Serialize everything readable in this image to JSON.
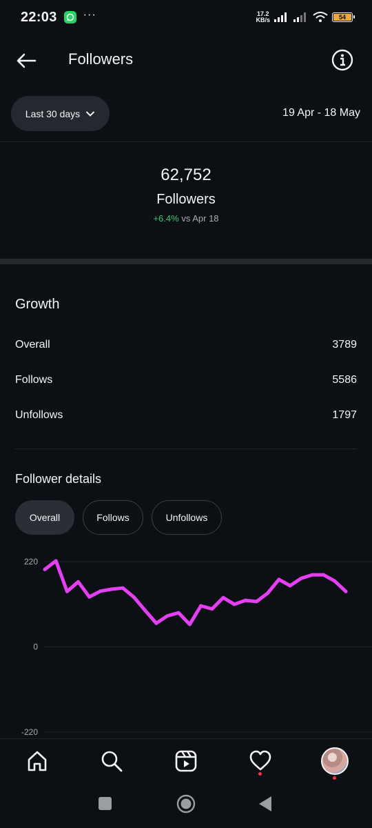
{
  "status_bar": {
    "time": "22:03",
    "overflow": "···",
    "net_speed_value": "17.2",
    "net_speed_unit": "KB/s",
    "battery": "54"
  },
  "header": {
    "title": "Followers"
  },
  "filter": {
    "range_label": "Last 30 days",
    "date_range": "19 Apr - 18 May"
  },
  "summary": {
    "total": "62,752",
    "label": "Followers",
    "change": "+6.4%",
    "change_suffix": "vs Apr 18"
  },
  "growth": {
    "title": "Growth",
    "rows": [
      {
        "label": "Overall",
        "value": "3789"
      },
      {
        "label": "Follows",
        "value": "5586"
      },
      {
        "label": "Unfollows",
        "value": "1797"
      }
    ]
  },
  "follower_details": {
    "title": "Follower details",
    "chips": [
      {
        "label": "Overall",
        "active": true
      },
      {
        "label": "Follows",
        "active": false
      },
      {
        "label": "Unfollows",
        "active": false
      }
    ]
  },
  "chart_data": {
    "type": "line",
    "title": "",
    "xlabel": "",
    "ylabel": "",
    "ylim": [
      -220,
      220
    ],
    "y_ticks": [
      "220",
      "0",
      "-220"
    ],
    "grid": true,
    "color": "#e43ff0",
    "series": [
      {
        "values": [
          200,
          222,
          143,
          168,
          129,
          144,
          149,
          152,
          128,
          94,
          61,
          80,
          88,
          58,
          106,
          98,
          127,
          110,
          120,
          117,
          139,
          174,
          158,
          177,
          186,
          186,
          170,
          143
        ]
      }
    ]
  },
  "bottom_nav": {
    "items": [
      "home-icon",
      "search-icon",
      "reels-icon",
      "heart-icon",
      "profile-avatar"
    ]
  }
}
